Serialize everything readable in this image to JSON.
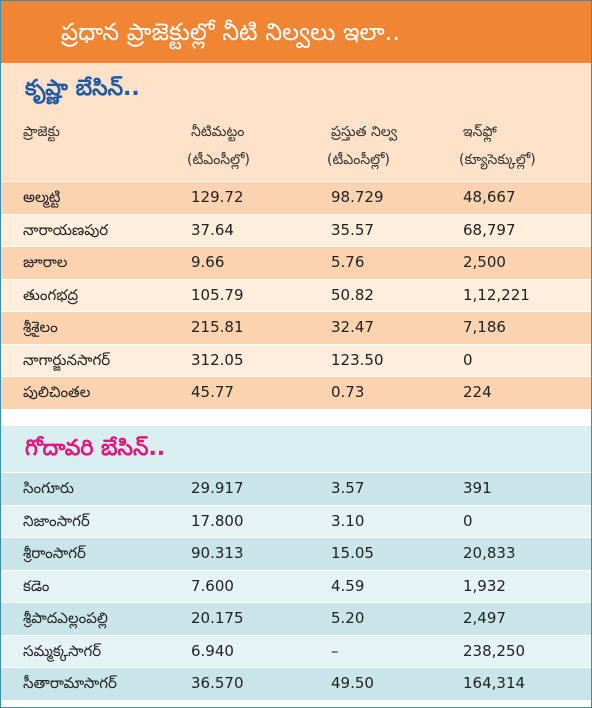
{
  "title": "ప్రధాన ప్రాజెక్టుల్లో నీటి నిల్వలు ఇలా..",
  "columns": [
    {
      "label": "ప్రాజెక్టు"
    },
    {
      "label": "నీటిమట్టం",
      "unit": "(టీఎంసీల్లో)"
    },
    {
      "label": "ప్రస్తుత నిల్వ",
      "unit": "(టీఎంసీల్లో)"
    },
    {
      "label": "ఇన్‌ఫ్లో",
      "unit": "(క్యూసెక్కుల్లో)"
    }
  ],
  "sections": [
    {
      "heading": "కృష్ణా బేసిన్..",
      "rows": [
        [
          "అల్మట్టి",
          "129.72",
          "98.729",
          "48,667"
        ],
        [
          "నారాయణపుర",
          "37.64",
          "35.57",
          "68,797"
        ],
        [
          "జూరాల",
          "9.66",
          "5.76",
          "2,500"
        ],
        [
          "తుంగభద్ర",
          "105.79",
          "50.82",
          "1,12,221"
        ],
        [
          "శ్రీశైలం",
          "215.81",
          "32.47",
          "7,186"
        ],
        [
          "నాగార్జునసాగర్",
          "312.05",
          "123.50",
          "0"
        ],
        [
          "పులిచింతల",
          "45.77",
          "0.73",
          "224"
        ]
      ]
    },
    {
      "heading": "గోదావరి బేసిన్..",
      "rows": [
        [
          "సింగూరు",
          "29.917",
          "3.57",
          "391"
        ],
        [
          "నిజాంసాగర్",
          "17.800",
          "3.10",
          "0"
        ],
        [
          "శ్రీరాంసాగర్",
          "90.313",
          "15.05",
          "20,833"
        ],
        [
          "కడెం",
          "7.600",
          "4.59",
          "1,932"
        ],
        [
          "శ్రీపాదఎల్లంపల్లి",
          "20.175",
          "5.20",
          "2,497"
        ],
        [
          "సమ్మక్కసాగర్",
          "6.940",
          "–",
          "238,250"
        ],
        [
          "సీతారామాసాగర్",
          "36.570",
          "49.50",
          "164,314"
        ]
      ]
    }
  ]
}
